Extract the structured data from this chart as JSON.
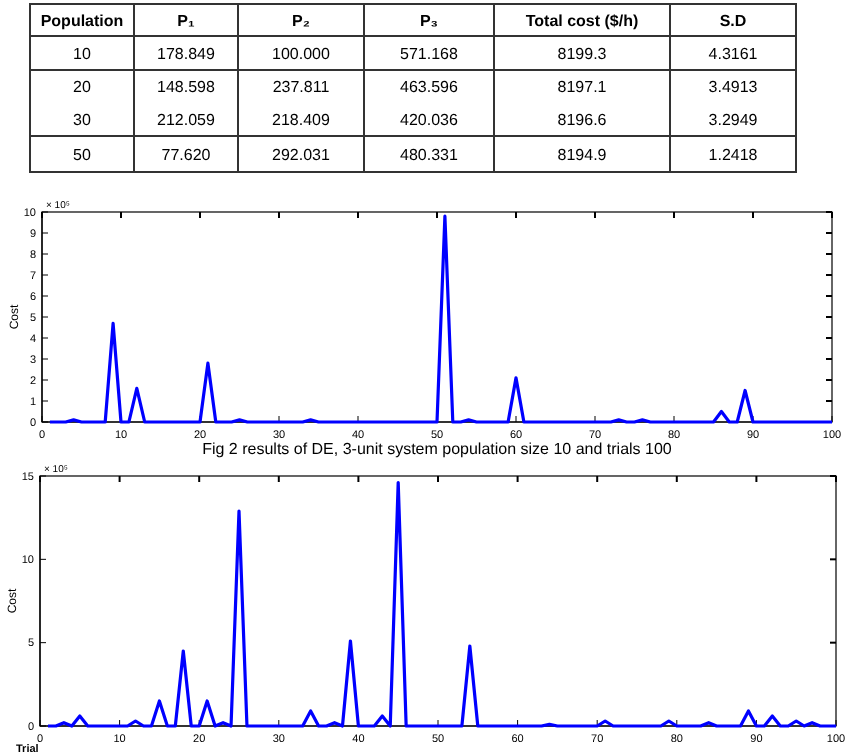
{
  "chart_data": [
    {
      "type": "other",
      "annotations": [
        "Population",
        "P₁",
        "P₂",
        "P₃",
        "Total cost ($/h)",
        "S.D",
        "10",
        "178.849",
        "100.000",
        "571.168",
        "8199.3",
        "4.3161",
        "20",
        "148.598",
        "237.811",
        "463.596",
        "8197.1",
        "3.4913",
        "30",
        "212.059",
        "218.409",
        "420.036",
        "8196.6",
        "3.2949",
        "50",
        "77.620",
        "292.031",
        "480.331",
        "8194.9",
        "1.2418"
      ]
    },
    {
      "type": "line",
      "title": "Fig 2 results of DE, 3-unit system population size 10 and trials 100",
      "ylabel": "Cost",
      "annotations": [
        "× 10⁵"
      ],
      "x": [
        1,
        3,
        4,
        5,
        8,
        9,
        10,
        11,
        12,
        13,
        20,
        21,
        22,
        24,
        25,
        26,
        33,
        34,
        35,
        50,
        51,
        52,
        53,
        54,
        55,
        59,
        60,
        61,
        72,
        73,
        74,
        75,
        76,
        77,
        85,
        86,
        87,
        88,
        89,
        90,
        100
      ],
      "series": [
        {
          "color": "#0000ff",
          "values": [
            0,
            0,
            0.1,
            0,
            0,
            4.7,
            0,
            0,
            1.6,
            0,
            0,
            2.8,
            0,
            0,
            0.1,
            0,
            0,
            0.1,
            0,
            0,
            9.8,
            0,
            0,
            0.1,
            0,
            0,
            2.1,
            0,
            0,
            0.1,
            0,
            0,
            0.1,
            0,
            0,
            0.5,
            0,
            0,
            1.5,
            0,
            0
          ]
        }
      ],
      "xlim": [
        0,
        100
      ],
      "xticks": [
        0,
        10,
        20,
        30,
        40,
        50,
        60,
        70,
        80,
        90,
        100
      ],
      "ylim": [
        0,
        10
      ],
      "yticks": [
        0,
        1,
        2,
        3,
        4,
        5,
        6,
        7,
        8,
        9,
        10
      ],
      "grid": false,
      "marker": "none",
      "line_style": "solid"
    },
    {
      "type": "line",
      "xlabel": "Trial",
      "ylabel": "Cost",
      "annotations": [
        "× 10⁵"
      ],
      "x": [
        1,
        2,
        3,
        4,
        5,
        6,
        11,
        12,
        13,
        14,
        15,
        16,
        17,
        18,
        19,
        20,
        21,
        22,
        23,
        24,
        25,
        26,
        33,
        34,
        35,
        36,
        37,
        38,
        39,
        40,
        42,
        43,
        44,
        45,
        46,
        53,
        54,
        55,
        63,
        64,
        65,
        70,
        71,
        72,
        78,
        79,
        80,
        83,
        84,
        85,
        88,
        89,
        90,
        91,
        92,
        93,
        94,
        95,
        96,
        97,
        98,
        100
      ],
      "series": [
        {
          "color": "#0000ff",
          "values": [
            0,
            0,
            0.2,
            0,
            0.6,
            0,
            0,
            0.3,
            0,
            0,
            1.5,
            0,
            0,
            4.5,
            0,
            0,
            1.5,
            0,
            0.2,
            0,
            12.9,
            0,
            0,
            0.9,
            0,
            0,
            0.2,
            0,
            5.1,
            0,
            0,
            0.6,
            0,
            14.6,
            0,
            0,
            4.8,
            0,
            0,
            0.1,
            0,
            0,
            0.3,
            0,
            0,
            0.3,
            0,
            0,
            0.2,
            0,
            0,
            0.9,
            0,
            0,
            0.6,
            0,
            0,
            0.3,
            0,
            0.2,
            0,
            0
          ]
        }
      ],
      "xlim": [
        0,
        100
      ],
      "xticks": [
        0,
        10,
        20,
        30,
        40,
        50,
        60,
        70,
        80,
        90,
        100
      ],
      "ylim": [
        0,
        15
      ],
      "yticks": [
        0,
        5,
        10,
        15
      ],
      "grid": false,
      "marker": "none",
      "line_style": "solid"
    }
  ]
}
